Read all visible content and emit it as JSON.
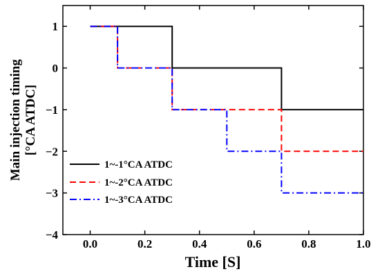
{
  "chart_data": {
    "type": "line",
    "step": true,
    "xlabel": "Time [S]",
    "ylabel": [
      "Main injection timing",
      "[°CA ATDC]"
    ],
    "xlim": [
      -0.1,
      1.0
    ],
    "ylim": [
      -4,
      1.5
    ],
    "xticks": [
      0.0,
      0.2,
      0.4,
      0.6,
      0.8,
      1.0
    ],
    "xtick_labels": [
      "0.0",
      "0.2",
      "0.4",
      "0.6",
      "0.8",
      "1.0"
    ],
    "yticks": [
      1,
      0,
      -1,
      -2,
      -3,
      -4
    ],
    "ytick_labels": [
      "1",
      "0",
      "−1",
      "−2",
      "−3",
      "−4"
    ],
    "grid": false,
    "legend_position": "lower-left",
    "series": [
      {
        "name": "1~-1°CA ATDC",
        "color": "#000000",
        "dash": "solid",
        "x": [
          0.0,
          0.3,
          0.3,
          0.7,
          0.7,
          1.0
        ],
        "y": [
          1,
          1,
          0,
          0,
          -1,
          -1
        ]
      },
      {
        "name": "1~-2°CA ATDC",
        "color": "#ff0000",
        "dash": "dashed",
        "x": [
          0.0,
          0.1,
          0.1,
          0.3,
          0.3,
          0.7,
          0.7,
          1.0
        ],
        "y": [
          1,
          1,
          0,
          0,
          -1,
          -1,
          -2,
          -2
        ]
      },
      {
        "name": "1~-3°CA ATDC",
        "color": "#0000ff",
        "dash": "dashdot",
        "x": [
          0.0,
          0.1,
          0.1,
          0.3,
          0.3,
          0.5,
          0.5,
          0.7,
          0.7,
          1.0
        ],
        "y": [
          1,
          1,
          0,
          0,
          -1,
          -1,
          -2,
          -2,
          -3,
          -3
        ]
      }
    ]
  }
}
